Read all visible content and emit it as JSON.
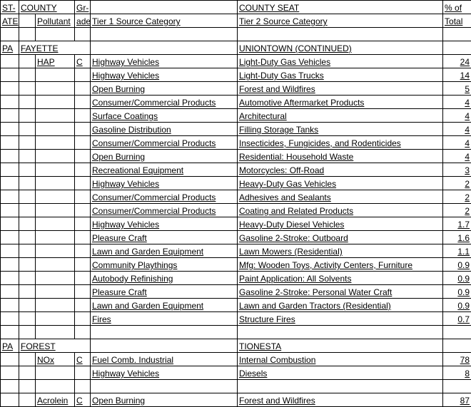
{
  "header": {
    "r1": {
      "state": "ST-",
      "county": "COUNTY",
      "grade": "Gr-",
      "seat": "COUNTY SEAT",
      "pct": "% of"
    },
    "r2": {
      "state": "ATE",
      "pollutant": "Pollutant",
      "grade": "ade",
      "tier1": "Tier 1 Source Category",
      "tier2": "Tier 2 Source Category",
      "pct": "Total"
    }
  },
  "sections": [
    {
      "county_row": {
        "state": "PA",
        "county": "FAYETTE",
        "seat": "UNIONTOWN (CONTINUED)"
      },
      "groups": [
        {
          "pollutant": "HAP",
          "grade": "C",
          "rows": [
            {
              "t1": "Highway Vehicles",
              "t2": "Light-Duty Gas Vehicles",
              "v": "24"
            },
            {
              "t1": "Highway Vehicles",
              "t2": "Light-Duty Gas Trucks",
              "v": "14"
            },
            {
              "t1": "Open Burning",
              "t2": "Forest and Wildfires",
              "v": "5"
            },
            {
              "t1": "Consumer/Commercial Products",
              "t2": "Automotive Aftermarket Products",
              "v": "4"
            },
            {
              "t1": "Surface Coatings",
              "t2": "Architectural",
              "v": "4"
            },
            {
              "t1": "Gasoline Distribution",
              "t2": "Filling Storage Tanks",
              "v": "4"
            },
            {
              "t1": "Consumer/Commercial Products",
              "t2": "Insecticides, Fungicides, and Rodenticides",
              "v": "4"
            },
            {
              "t1": "Open Burning",
              "t2": "Residential: Household Waste",
              "v": "4"
            },
            {
              "t1": "Recreational Equipment",
              "t2": "Motorcycles: Off-Road",
              "v": "3"
            },
            {
              "t1": "Highway Vehicles",
              "t2": "Heavy-Duty Gas Vehicles",
              "v": "2"
            },
            {
              "t1": "Consumer/Commercial Products",
              "t2": "Adhesives and Sealants",
              "v": "2"
            },
            {
              "t1": "Consumer/Commercial Products",
              "t2": "Coating and Related Products",
              "v": "2"
            },
            {
              "t1": "Highway Vehicles",
              "t2": "Heavy-Duty Diesel Vehicles",
              "v": "1.7"
            },
            {
              "t1": "Pleasure Craft",
              "t2": "Gasoline 2-Stroke: Outboard",
              "v": "1.6"
            },
            {
              "t1": "Lawn and Garden Equipment",
              "t2": "Lawn Mowers (Residential)",
              "v": "1.1"
            },
            {
              "t1": "Community Playthings",
              "t2": "Mfg: Wooden Toys, Activity Centers, Furniture",
              "v": "0.9"
            },
            {
              "t1": "Autobody Refinishing",
              "t2": "Paint Application: All Solvents",
              "v": "0.9"
            },
            {
              "t1": "Pleasure Craft",
              "t2": "Gasoline 2-Stroke: Personal Water Craft",
              "v": "0.9"
            },
            {
              "t1": "Lawn and Garden Equipment",
              "t2": "Lawn and Garden Tractors (Residential)",
              "v": "0.9"
            },
            {
              "t1": "Fires",
              "t2": "Structure Fires",
              "v": "0.7"
            }
          ]
        }
      ]
    },
    {
      "county_row": {
        "state": "PA",
        "county": "FOREST",
        "seat": "TIONESTA"
      },
      "groups": [
        {
          "pollutant": "NOx",
          "grade": "C",
          "rows": [
            {
              "t1": "Fuel Comb. Industrial",
              "t2": "Internal Combustion",
              "v": "78"
            },
            {
              "t1": "Highway Vehicles",
              "t2": "Diesels",
              "v": "8"
            }
          ]
        },
        {
          "pollutant": "Acrolein",
          "grade": "C",
          "rows": [
            {
              "t1": "Open Burning",
              "t2": "Forest and Wildfires",
              "v": "87"
            }
          ]
        }
      ]
    }
  ]
}
